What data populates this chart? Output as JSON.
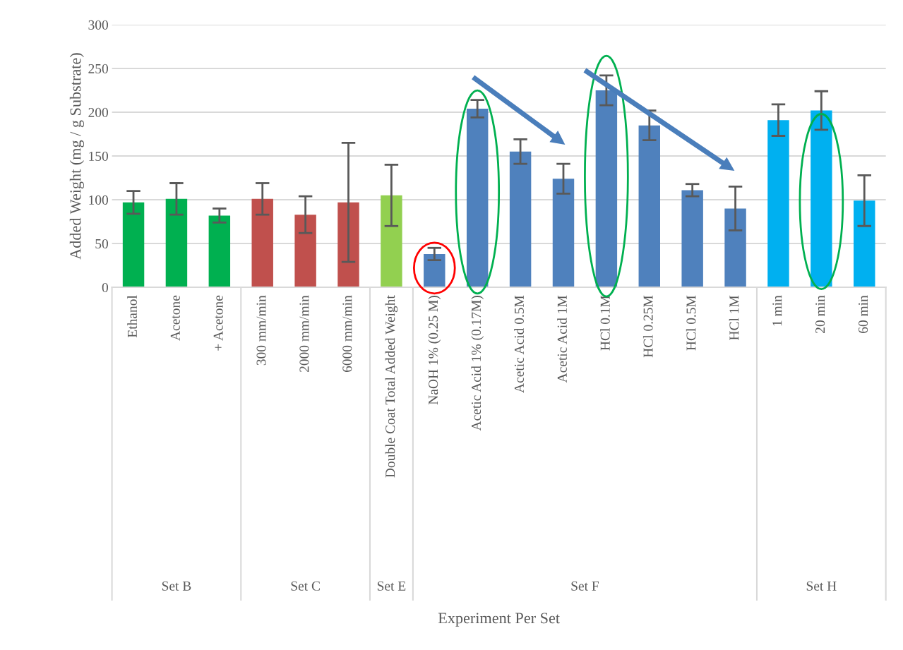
{
  "chart_data": {
    "type": "bar",
    "ylabel": "Added Weight (mg / g Substrate)",
    "categories": [
      "Ethanol",
      "Acetone",
      "+ Acetone",
      "300 mm/min",
      "2000 mm/min",
      "6000 mm/min",
      "Double Coat Total Added Weight",
      "NaOH 1% (0.25 M)",
      "Acetic Acid 1% (0.17M)",
      "Acetic Acid 0.5M",
      "Acetic Acid 1M",
      "HCl 0.1M",
      "HCl 0.25M",
      "HCl 0.5M",
      "HCl 1M",
      "1 min",
      "20 min",
      "60 min"
    ],
    "values": [
      97,
      101,
      82,
      101,
      83,
      97,
      105,
      38,
      204,
      155,
      124,
      225,
      185,
      111,
      90,
      191,
      202,
      99
    ],
    "errors": [
      13,
      18,
      8,
      18,
      21,
      68,
      35,
      7,
      10,
      14,
      17,
      17,
      17,
      7,
      25,
      18,
      22,
      29
    ],
    "colors": [
      "#00b050",
      "#00b050",
      "#00b050",
      "#c0504d",
      "#c0504d",
      "#c0504d",
      "#92d050",
      "#4f81bd",
      "#4f81bd",
      "#4f81bd",
      "#4f81bd",
      "#4f81bd",
      "#4f81bd",
      "#4f81bd",
      "#4f81bd",
      "#00b0f0",
      "#00b0f0",
      "#00b0f0"
    ],
    "annotations": [
      "Set B",
      "Set C",
      "Set E",
      "Set F",
      "Set H",
      "Experiment Per Set"
    ],
    "ylim": [
      0,
      300
    ],
    "yticks": [
      0,
      50,
      100,
      150,
      200,
      250,
      300
    ],
    "grid": "y"
  }
}
